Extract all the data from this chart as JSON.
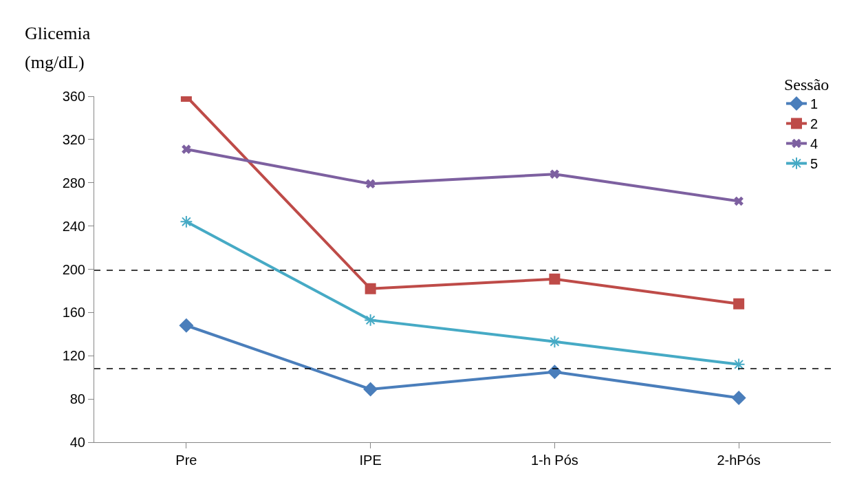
{
  "chart_data": {
    "type": "line",
    "ylabel": "Glicemia\n(mg/dL)",
    "legend_title": "Sessão",
    "categories": [
      "Pre",
      "IPE",
      "1-h Pós",
      "2-hPós"
    ],
    "series": [
      {
        "name": "1",
        "color": "#4a7ebb",
        "marker": "diamond",
        "values": [
          148,
          89,
          105,
          81
        ]
      },
      {
        "name": "2",
        "color": "#be4b48",
        "marker": "square",
        "values": [
          360,
          182,
          191,
          168
        ]
      },
      {
        "name": "4",
        "color": "#7d60a0",
        "marker": "cross",
        "values": [
          311,
          279,
          288,
          263
        ]
      },
      {
        "name": "5",
        "color": "#46aac5",
        "marker": "cross",
        "values": [
          244,
          153,
          133,
          112
        ]
      }
    ],
    "ylim": [
      40,
      360
    ],
    "yticks": [
      40,
      80,
      120,
      160,
      200,
      240,
      280,
      320,
      360
    ],
    "grid": false,
    "legend": "top right",
    "line_style": "solid",
    "ref_lines": [
      {
        "axis": "y",
        "value": 199,
        "color": "#000000",
        "line_style": "dashed"
      },
      {
        "axis": "y",
        "value": 108,
        "color": "#000000",
        "line_style": "dashed"
      }
    ]
  }
}
